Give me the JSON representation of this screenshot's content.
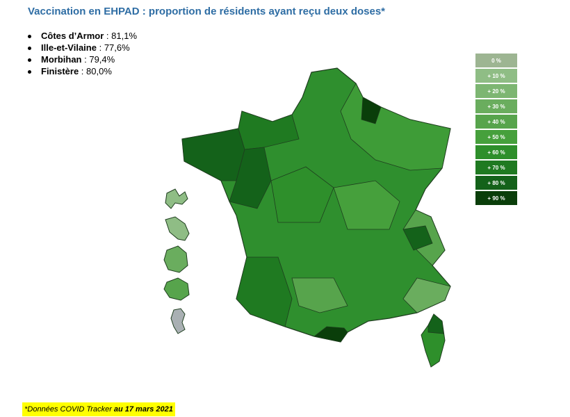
{
  "title": "Vaccination en EHPAD : proportion de résidents ayant reçu deux doses*",
  "stats": [
    {
      "name": "Côtes d’Armor",
      "value": "81,1%"
    },
    {
      "name": "Ille-et-Vilaine",
      "value": "77,6%"
    },
    {
      "name": "Morbihan",
      "value": "79,4%"
    },
    {
      "name": "Finistère",
      "value": "80,0%"
    }
  ],
  "legend": [
    {
      "label": "0 %",
      "color": "#9db592"
    },
    {
      "label": "+ 10 %",
      "color": "#8fbd85"
    },
    {
      "label": "+ 20 %",
      "color": "#7db672"
    },
    {
      "label": "+ 30 %",
      "color": "#6aad5e"
    },
    {
      "label": "+ 40 %",
      "color": "#57a44c"
    },
    {
      "label": "+ 50 %",
      "color": "#46a03c"
    },
    {
      "label": "+ 60 %",
      "color": "#2e8f2b"
    },
    {
      "label": "+ 70 %",
      "color": "#1f7a21"
    },
    {
      "label": "+ 80 %",
      "color": "#14621a"
    },
    {
      "label": "+ 90 %",
      "color": "#0a3e0a"
    }
  ],
  "footnote": {
    "source": "*Données COVID Tracker",
    "date": "au 17 mars 2021"
  },
  "map_colors": {
    "border": "#1e3d1e",
    "mainland": "#2f8f2e",
    "guyane": "#a9b0b3"
  }
}
